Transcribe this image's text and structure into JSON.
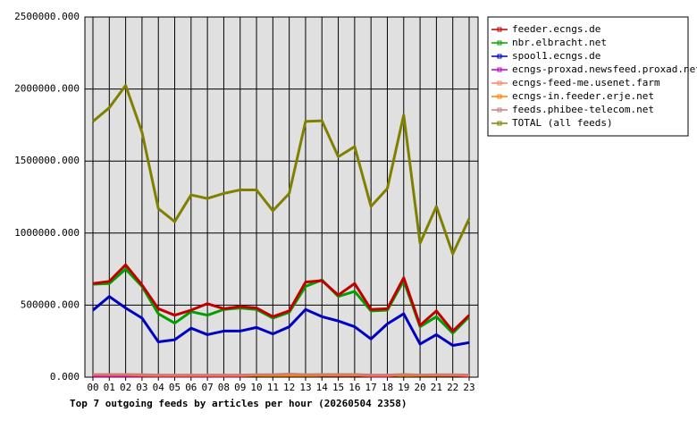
{
  "chart_data": {
    "type": "line",
    "title": "Top 7 outgoing feeds by articles per hour (20260504 2358)",
    "categories": [
      "00",
      "01",
      "02",
      "03",
      "04",
      "05",
      "06",
      "07",
      "08",
      "09",
      "10",
      "11",
      "12",
      "13",
      "14",
      "15",
      "16",
      "17",
      "18",
      "19",
      "20",
      "21",
      "22",
      "23"
    ],
    "ylim": [
      0,
      2500000
    ],
    "yticks": [
      {
        "value": 0,
        "label": "0.000"
      },
      {
        "value": 500000,
        "label": "500000.000"
      },
      {
        "value": 1000000,
        "label": "1000000.000"
      },
      {
        "value": 1500000,
        "label": "1500000.000"
      },
      {
        "value": 2000000,
        "label": "2000000.000"
      },
      {
        "value": 2500000,
        "label": "2500000.000"
      }
    ],
    "grid": true,
    "legend": "right",
    "series": [
      {
        "name": "feeder.ecngs.de",
        "color": "#c00000",
        "values": [
          650000,
          665000,
          780000,
          640000,
          475000,
          430000,
          465000,
          510000,
          475000,
          490000,
          480000,
          420000,
          460000,
          660000,
          670000,
          570000,
          650000,
          470000,
          475000,
          690000,
          360000,
          460000,
          320000,
          430000
        ]
      },
      {
        "name": "nbr.elbracht.net",
        "color": "#00a000",
        "values": [
          645000,
          650000,
          750000,
          630000,
          440000,
          375000,
          455000,
          430000,
          470000,
          480000,
          470000,
          410000,
          450000,
          630000,
          675000,
          560000,
          595000,
          460000,
          465000,
          670000,
          350000,
          420000,
          305000,
          420000
        ]
      },
      {
        "name": "spool1.ecngs.de",
        "color": "#0000c0",
        "values": [
          465000,
          560000,
          480000,
          410000,
          245000,
          260000,
          340000,
          295000,
          320000,
          320000,
          345000,
          300000,
          350000,
          470000,
          420000,
          390000,
          350000,
          265000,
          370000,
          440000,
          230000,
          295000,
          220000,
          240000
        ]
      },
      {
        "name": "ecngs-proxad.newsfeed.proxad.net",
        "color": "#c000c0",
        "values": [
          5000,
          5000,
          5000,
          5000,
          5000,
          5000,
          5000,
          5000,
          5000,
          5000,
          10000,
          15000,
          20000,
          15000,
          10000,
          10000,
          10000,
          5000,
          5000,
          15000,
          10000,
          10000,
          10000,
          5000
        ]
      },
      {
        "name": "ecngs-feed-me.usenet.farm",
        "color": "#ff8060",
        "values": [
          20000,
          22000,
          20000,
          18000,
          15000,
          15000,
          15000,
          15000,
          15000,
          15000,
          15000,
          15000,
          15000,
          15000,
          20000,
          20000,
          20000,
          15000,
          15000,
          18000,
          15000,
          18000,
          18000,
          15000
        ]
      },
      {
        "name": "ecngs-in.feeder.erje.net",
        "color": "#ff8000",
        "values": [
          15000,
          15000,
          15000,
          12000,
          10000,
          10000,
          10000,
          10000,
          10000,
          10000,
          10000,
          10000,
          10000,
          10000,
          12000,
          12000,
          12000,
          10000,
          10000,
          12000,
          10000,
          12000,
          12000,
          10000
        ]
      },
      {
        "name": "feeds.phibee-telecom.net",
        "color": "#c08080",
        "values": [
          20000,
          20000,
          22000,
          20000,
          18000,
          18000,
          18000,
          18000,
          18000,
          18000,
          20000,
          20000,
          25000,
          20000,
          22000,
          22000,
          22000,
          18000,
          18000,
          22000,
          18000,
          20000,
          20000,
          18000
        ]
      },
      {
        "name": "TOTAL (all feeds)",
        "color": "#808000",
        "values": [
          1775000,
          1870000,
          2025000,
          1700000,
          1170000,
          1080000,
          1265000,
          1240000,
          1275000,
          1300000,
          1300000,
          1155000,
          1275000,
          1775000,
          1780000,
          1530000,
          1600000,
          1185000,
          1310000,
          1820000,
          930000,
          1185000,
          855000,
          1100000
        ]
      }
    ]
  }
}
